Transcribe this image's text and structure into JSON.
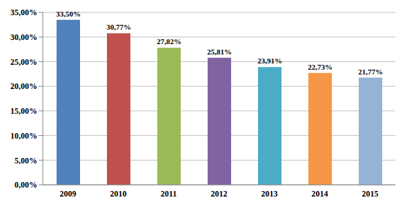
{
  "chart_data": {
    "type": "bar",
    "categories": [
      "2009",
      "2010",
      "2011",
      "2012",
      "2013",
      "2014",
      "2015"
    ],
    "values": [
      33.5,
      30.77,
      27.82,
      25.81,
      23.91,
      22.73,
      21.77
    ],
    "value_labels": [
      "33,50%",
      "30,77%",
      "27,82%",
      "25,81%",
      "23,91%",
      "22,73%",
      "21,77%"
    ],
    "colors": [
      "#4F81BD",
      "#C0504D",
      "#9BBB59",
      "#8064A2",
      "#4BACC6",
      "#F79646",
      "#95B3D7"
    ],
    "ylim": [
      0,
      35
    ],
    "yticks": [
      {
        "value": 0,
        "label": "0,00%"
      },
      {
        "value": 5,
        "label": "5,00%"
      },
      {
        "value": 10,
        "label": "10,00%"
      },
      {
        "value": 15,
        "label": "15,00%"
      },
      {
        "value": 20,
        "label": "20,00%"
      },
      {
        "value": 25,
        "label": "25,00%"
      },
      {
        "value": 30,
        "label": "30,00%"
      },
      {
        "value": 35,
        "label": "35,00%"
      }
    ],
    "grid": true,
    "data_labels": true
  }
}
